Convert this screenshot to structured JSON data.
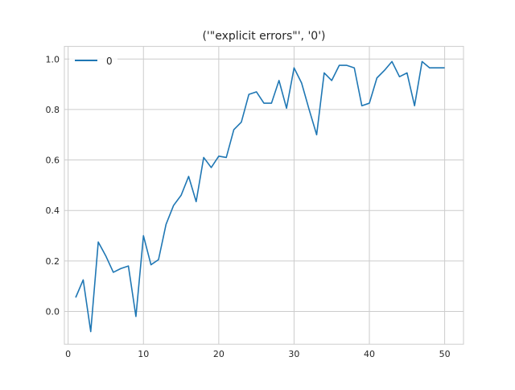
{
  "chart_data": {
    "type": "line",
    "title": "('\"explicit errors\"', '0')",
    "xlabel": "",
    "ylabel": "",
    "xlim": [
      -0.5,
      52.5
    ],
    "ylim": [
      -0.13,
      1.05
    ],
    "xticks": [
      0,
      10,
      20,
      30,
      40,
      50
    ],
    "yticks": [
      0.0,
      0.2,
      0.4,
      0.6,
      0.8,
      1.0
    ],
    "xtick_labels": [
      "0",
      "10",
      "20",
      "30",
      "40",
      "50"
    ],
    "ytick_labels": [
      "0.0",
      "0.2",
      "0.4",
      "0.6",
      "0.8",
      "1.0"
    ],
    "grid": true,
    "legend_position": "top-left",
    "series": [
      {
        "name": "0",
        "color": "#1f77b4",
        "x": [
          1,
          2,
          3,
          4,
          5,
          6,
          7,
          8,
          9,
          10,
          11,
          12,
          13,
          14,
          15,
          16,
          17,
          18,
          19,
          20,
          21,
          22,
          23,
          24,
          25,
          26,
          27,
          28,
          29,
          30,
          31,
          32,
          33,
          34,
          35,
          36,
          37,
          38,
          39,
          40,
          41,
          42,
          43,
          44,
          45,
          46,
          47,
          48,
          49,
          50
        ],
        "values": [
          0.055,
          0.125,
          -0.08,
          0.275,
          0.22,
          0.155,
          0.17,
          0.18,
          -0.02,
          0.3,
          0.185,
          0.205,
          0.345,
          0.42,
          0.46,
          0.535,
          0.435,
          0.61,
          0.57,
          0.615,
          0.61,
          0.72,
          0.75,
          0.86,
          0.87,
          0.825,
          0.825,
          0.915,
          0.805,
          0.965,
          0.905,
          0.8,
          0.7,
          0.945,
          0.915,
          0.975,
          0.975,
          0.965,
          0.815,
          0.825,
          0.925,
          0.955,
          0.99,
          0.93,
          0.945,
          0.815,
          0.99,
          0.965,
          0.965,
          0.965
        ]
      }
    ]
  }
}
